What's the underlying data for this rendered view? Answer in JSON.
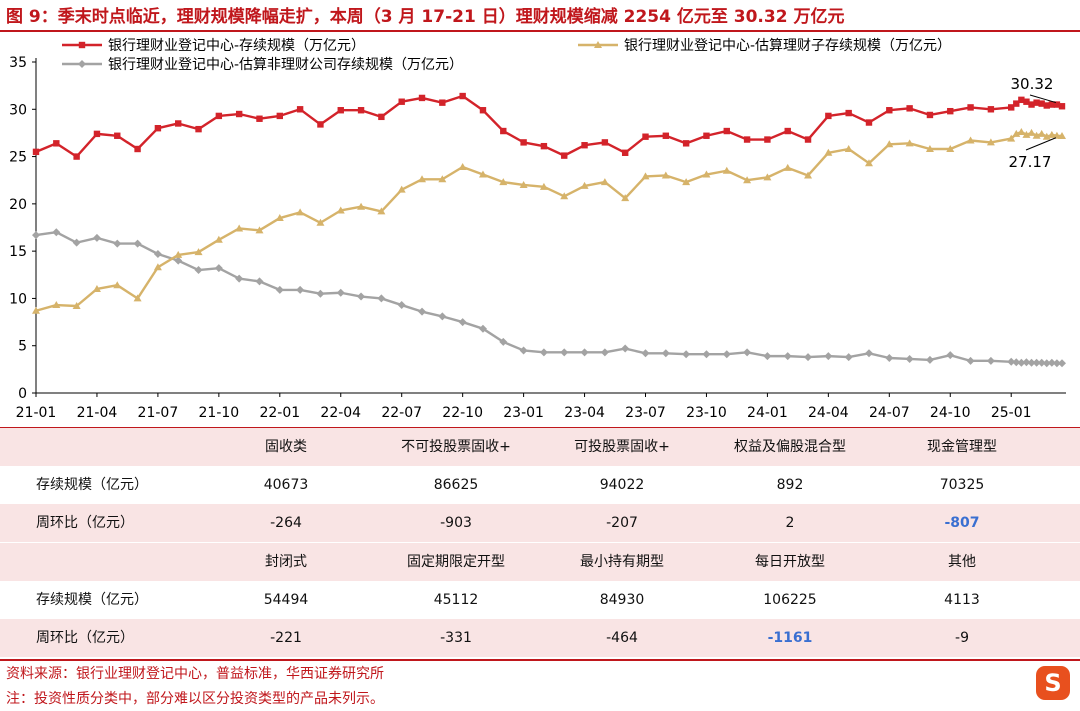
{
  "figure": {
    "title": "图 9：季末时点临近，理财规模降幅走扩，本周（3 月 17-21 日）理财规模缩减 2254 亿元至 30.32 万亿元"
  },
  "chart_data": {
    "type": "line",
    "ylim": [
      0,
      35
    ],
    "yticks": [
      0,
      5,
      10,
      15,
      20,
      25,
      30,
      35
    ],
    "x_tick_labels": [
      "21-01",
      "21-04",
      "21-07",
      "21-10",
      "22-01",
      "22-04",
      "22-07",
      "22-10",
      "23-01",
      "23-04",
      "23-07",
      "23-10",
      "24-01",
      "24-04",
      "24-07",
      "24-10",
      "25-01"
    ],
    "x_tick_months": [
      0,
      3,
      6,
      9,
      12,
      15,
      18,
      21,
      24,
      27,
      30,
      33,
      36,
      39,
      42,
      45,
      48
    ],
    "grid": false,
    "legend": "top",
    "annotations": [
      {
        "text": "30.32",
        "series": 0
      },
      {
        "text": "27.17",
        "series": 1
      }
    ],
    "series": [
      {
        "name": "银行理财业登记中心-存续规模（万亿元）",
        "color": "#d3232a",
        "marker": "square",
        "x": [
          0,
          1,
          2,
          3,
          4,
          5,
          6,
          7,
          8,
          9,
          10,
          11,
          12,
          13,
          14,
          15,
          16,
          17,
          18,
          19,
          20,
          21,
          22,
          23,
          24,
          25,
          26,
          27,
          28,
          29,
          30,
          31,
          32,
          33,
          34,
          35,
          36,
          37,
          38,
          39,
          40,
          41,
          42,
          43,
          44,
          45,
          46,
          47,
          48,
          48.25,
          48.5,
          48.75,
          49,
          49.25,
          49.5,
          49.75,
          50,
          50.25,
          50.5
        ],
        "values": [
          25.5,
          26.4,
          25.0,
          27.4,
          27.2,
          25.8,
          28.0,
          28.5,
          27.9,
          29.3,
          29.5,
          29.0,
          29.3,
          30.0,
          28.4,
          29.9,
          29.9,
          29.2,
          30.8,
          31.2,
          30.7,
          31.4,
          29.9,
          27.7,
          26.5,
          26.1,
          25.1,
          26.2,
          26.5,
          25.4,
          27.1,
          27.2,
          26.4,
          27.2,
          27.7,
          26.8,
          26.8,
          27.7,
          26.8,
          29.3,
          29.6,
          28.6,
          29.9,
          30.1,
          29.4,
          29.8,
          30.2,
          30.0,
          30.2,
          30.6,
          31.0,
          30.8,
          30.5,
          30.7,
          30.6,
          30.4,
          30.5,
          30.5,
          30.32
        ]
      },
      {
        "name": "银行理财业登记中心-估算理财子存续规模（万亿元）",
        "color": "#d6b36a",
        "marker": "triangle",
        "x": [
          0,
          1,
          2,
          3,
          4,
          5,
          6,
          7,
          8,
          9,
          10,
          11,
          12,
          13,
          14,
          15,
          16,
          17,
          18,
          19,
          20,
          21,
          22,
          23,
          24,
          25,
          26,
          27,
          28,
          29,
          30,
          31,
          32,
          33,
          34,
          35,
          36,
          37,
          38,
          39,
          40,
          41,
          42,
          43,
          44,
          45,
          46,
          47,
          48,
          48.25,
          48.5,
          48.75,
          49,
          49.25,
          49.5,
          49.75,
          50,
          50.25,
          50.5
        ],
        "values": [
          8.7,
          9.3,
          9.2,
          11.0,
          11.4,
          10.0,
          13.3,
          14.6,
          14.9,
          16.2,
          17.4,
          17.2,
          18.5,
          19.1,
          18.0,
          19.3,
          19.7,
          19.2,
          21.5,
          22.6,
          22.6,
          23.9,
          23.1,
          22.3,
          22.0,
          21.8,
          20.8,
          21.9,
          22.3,
          20.6,
          22.9,
          23.0,
          22.3,
          23.1,
          23.5,
          22.5,
          22.8,
          23.8,
          23.0,
          25.4,
          25.8,
          24.3,
          26.3,
          26.4,
          25.8,
          25.8,
          26.7,
          26.5,
          26.9,
          27.4,
          27.6,
          27.3,
          27.5,
          27.2,
          27.4,
          27.1,
          27.3,
          27.2,
          27.17
        ]
      },
      {
        "name": "银行理财业登记中心-估算非理财公司存续规模（万亿元）",
        "color": "#a3a3a3",
        "marker": "diamond",
        "x": [
          0,
          1,
          2,
          3,
          4,
          5,
          6,
          7,
          8,
          9,
          10,
          11,
          12,
          13,
          14,
          15,
          16,
          17,
          18,
          19,
          20,
          21,
          22,
          23,
          24,
          25,
          26,
          27,
          28,
          29,
          30,
          31,
          32,
          33,
          34,
          35,
          36,
          37,
          38,
          39,
          40,
          41,
          42,
          43,
          44,
          45,
          46,
          47,
          48,
          48.25,
          48.5,
          48.75,
          49,
          49.25,
          49.5,
          49.75,
          50,
          50.25,
          50.5
        ],
        "values": [
          16.7,
          17.0,
          15.9,
          16.4,
          15.8,
          15.8,
          14.7,
          14.0,
          13.0,
          13.2,
          12.1,
          11.8,
          10.9,
          10.9,
          10.5,
          10.6,
          10.2,
          10.0,
          9.3,
          8.6,
          8.1,
          7.5,
          6.8,
          5.4,
          4.5,
          4.3,
          4.3,
          4.3,
          4.3,
          4.7,
          4.2,
          4.2,
          4.1,
          4.1,
          4.1,
          4.3,
          3.9,
          3.9,
          3.8,
          3.9,
          3.8,
          4.2,
          3.7,
          3.6,
          3.5,
          4.0,
          3.4,
          3.4,
          3.3,
          3.25,
          3.2,
          3.25,
          3.2,
          3.2,
          3.2,
          3.15,
          3.2,
          3.15,
          3.15
        ]
      }
    ]
  },
  "table": {
    "rows": [
      {
        "type": "header",
        "cells": [
          "固收类",
          "不可投股票固收+",
          "可投股票固收+",
          "权益及偏股混合型",
          "现金管理型"
        ]
      },
      {
        "type": "data",
        "label": "存续规模（亿元）",
        "cells": [
          "40673",
          "86625",
          "94022",
          "892",
          "70325"
        ]
      },
      {
        "type": "data",
        "label": "周环比（亿元）",
        "cells": [
          "-264",
          "-903",
          "-207",
          "2",
          "-807"
        ]
      },
      {
        "type": "header",
        "cells": [
          "封闭式",
          "固定期限定开型",
          "最小持有期型",
          "每日开放型",
          "其他"
        ]
      },
      {
        "type": "data",
        "label": "存续规模（亿元）",
        "cells": [
          "54494",
          "45112",
          "84930",
          "106225",
          "4113"
        ]
      },
      {
        "type": "data",
        "label": "周环比（亿元）",
        "cells": [
          "-221",
          "-331",
          "-464",
          "-1161",
          "-9"
        ]
      }
    ],
    "highlight_color": "#3a6fd1",
    "highlighted": [
      "2.4",
      "5.3"
    ]
  },
  "notes": {
    "source": "资料来源：银行业理财登记中心，普益标准，华西证券研究所",
    "note": "注：投资性质分类中，部分难以区分投资类型的产品未列示。"
  },
  "logo": {
    "glyph": "S",
    "icon": "sohu-logo-icon"
  }
}
